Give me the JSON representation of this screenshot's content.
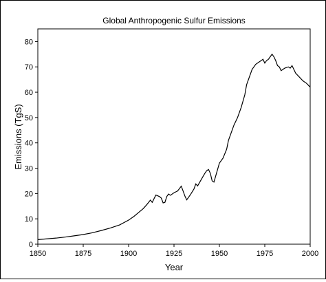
{
  "chart_data": {
    "type": "line",
    "title": "Global Anthropogenic Sulfur Emissions",
    "xlabel": "Year",
    "ylabel": "Emissions (TgS)",
    "xlim": [
      1850,
      2000
    ],
    "ylim": [
      0,
      85
    ],
    "xticks": [
      1850,
      1875,
      1900,
      1925,
      1950,
      1975,
      2000
    ],
    "yticks": [
      0,
      10,
      20,
      30,
      40,
      50,
      60,
      70,
      80
    ],
    "grid": false,
    "series": [
      {
        "name": "",
        "color": "#000000",
        "x": [
          1850,
          1855,
          1860,
          1865,
          1870,
          1875,
          1880,
          1885,
          1890,
          1895,
          1900,
          1903,
          1905,
          1908,
          1910,
          1912,
          1913,
          1915,
          1917,
          1918,
          1919,
          1920,
          1921,
          1922,
          1923,
          1925,
          1927,
          1929,
          1930,
          1931,
          1932,
          1934,
          1936,
          1937,
          1938,
          1940,
          1942,
          1943,
          1944,
          1945,
          1946,
          1947,
          1948,
          1950,
          1952,
          1954,
          1955,
          1956,
          1958,
          1960,
          1962,
          1964,
          1965,
          1966,
          1968,
          1970,
          1972,
          1974,
          1975,
          1976,
          1977,
          1978,
          1979,
          1980,
          1981,
          1982,
          1983,
          1984,
          1985,
          1986,
          1988,
          1989,
          1990,
          1991,
          1992,
          1994,
          1996,
          1998,
          2000
        ],
        "y": [
          1.8,
          2.1,
          2.4,
          2.8,
          3.3,
          3.8,
          4.5,
          5.4,
          6.4,
          7.6,
          9.5,
          11.0,
          12.2,
          14.0,
          15.6,
          17.4,
          16.5,
          19.4,
          18.8,
          18.2,
          16.3,
          16.5,
          18.8,
          19.8,
          19.3,
          20.3,
          21.0,
          22.9,
          21.0,
          19.0,
          17.5,
          19.5,
          21.8,
          23.8,
          23.0,
          25.5,
          28.0,
          29.0,
          29.5,
          28.0,
          25.0,
          24.5,
          27.0,
          32.0,
          34.0,
          37.5,
          41.0,
          43.0,
          47.0,
          50.0,
          54.0,
          59.0,
          63.0,
          65.0,
          69.0,
          71.0,
          72.0,
          73.0,
          71.5,
          72.5,
          73.0,
          74.0,
          75.0,
          74.0,
          72.5,
          70.5,
          70.0,
          68.5,
          69.0,
          69.5,
          70.0,
          69.5,
          70.5,
          69.0,
          67.5,
          66.0,
          64.5,
          63.5,
          62.0
        ]
      }
    ]
  }
}
